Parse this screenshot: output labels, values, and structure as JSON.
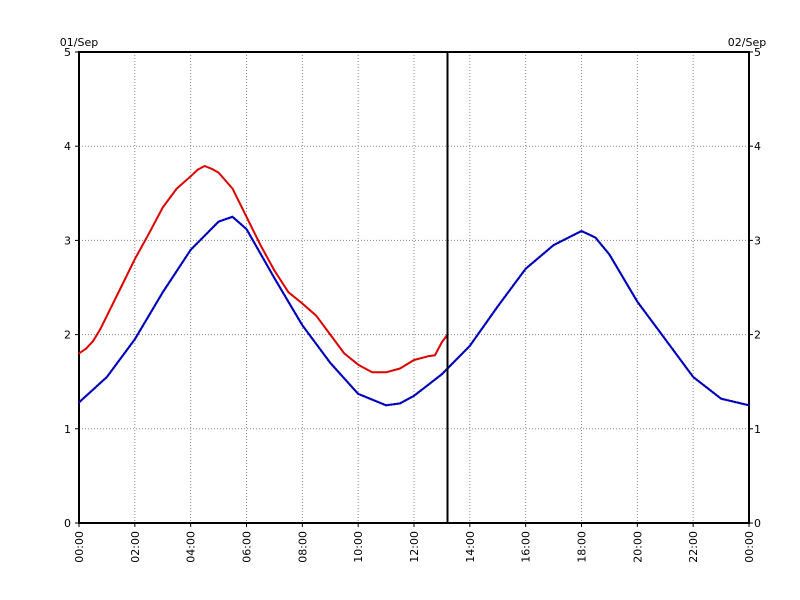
{
  "chart_data": {
    "type": "line",
    "date_left": "01/Sep",
    "date_right": "02/Sep",
    "x_unit": "hours",
    "xlim": [
      0,
      24
    ],
    "ylim": [
      0,
      5
    ],
    "y_ticks": [
      0,
      1,
      2,
      3,
      4,
      5
    ],
    "x_tick_labels": [
      "00:00",
      "02:00",
      "04:00",
      "06:00",
      "08:00",
      "10:00",
      "12:00",
      "14:00",
      "16:00",
      "18:00",
      "20:00",
      "22:00",
      "00:00"
    ],
    "grid": true,
    "marker_time": 13.2,
    "series": [
      {
        "color": "#dd0000",
        "style": "solid",
        "x": [
          0,
          0.25,
          0.5,
          0.75,
          1,
          1.5,
          2,
          2.5,
          3,
          3.5,
          4,
          4.25,
          4.5,
          4.75,
          5,
          5.5,
          6,
          6.5,
          7,
          7.5,
          8,
          8.5,
          9,
          9.5,
          10,
          10.5,
          11,
          11.5,
          12,
          12.5,
          12.75,
          13,
          13.2
        ],
        "y": [
          1.8,
          1.85,
          1.93,
          2.05,
          2.2,
          2.5,
          2.8,
          3.07,
          3.35,
          3.55,
          3.68,
          3.75,
          3.79,
          3.76,
          3.72,
          3.55,
          3.25,
          2.95,
          2.68,
          2.45,
          2.33,
          2.2,
          2.0,
          1.8,
          1.68,
          1.6,
          1.6,
          1.64,
          1.73,
          1.77,
          1.78,
          1.92,
          2.0
        ]
      },
      {
        "color": "#0000bb",
        "style": "dotted",
        "x": [
          0,
          1,
          2,
          3,
          4,
          5,
          5.5,
          6,
          7,
          8,
          9,
          10,
          11,
          11.5,
          12,
          13,
          14,
          15,
          16,
          17,
          18,
          18.5,
          19,
          20,
          21,
          22,
          23,
          24
        ],
        "y": [
          1.28,
          1.55,
          1.95,
          2.45,
          2.9,
          3.2,
          3.25,
          3.12,
          2.6,
          2.1,
          1.7,
          1.37,
          1.25,
          1.27,
          1.35,
          1.58,
          1.88,
          2.3,
          2.7,
          2.95,
          3.1,
          3.03,
          2.85,
          2.35,
          1.95,
          1.55,
          1.32,
          1.25
        ]
      }
    ]
  }
}
